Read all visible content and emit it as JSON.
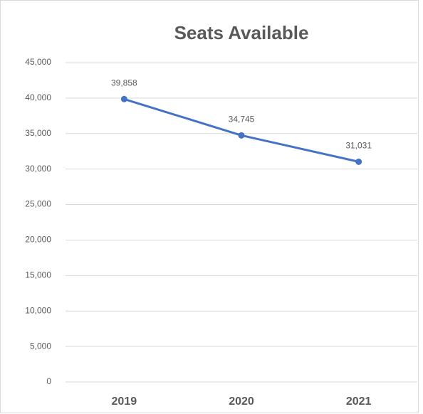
{
  "chart_data": {
    "type": "line",
    "title": "Seats Available",
    "categories": [
      "2019",
      "2020",
      "2021"
    ],
    "series": [
      {
        "name": "Seats Available",
        "color": "#4472c4",
        "values": [
          39858,
          34745,
          31031
        ],
        "value_labels": [
          "39,858",
          "34,745",
          "31,031"
        ]
      }
    ],
    "ylim": [
      0,
      45000
    ],
    "yticks": [
      0,
      {
        "value": 5000,
        "label": "5,000"
      },
      {
        "value": 10000,
        "label": "10,000"
      },
      {
        "value": 15000,
        "label": "15,000"
      },
      {
        "value": 20000,
        "label": "20,000"
      },
      {
        "value": 25000,
        "label": "25,000"
      },
      {
        "value": 30000,
        "label": "30,000"
      },
      {
        "value": 35000,
        "label": "35,000"
      },
      {
        "value": 40000,
        "label": "40,000"
      },
      {
        "value": 45000,
        "label": "45,000"
      }
    ],
    "grid": true
  }
}
